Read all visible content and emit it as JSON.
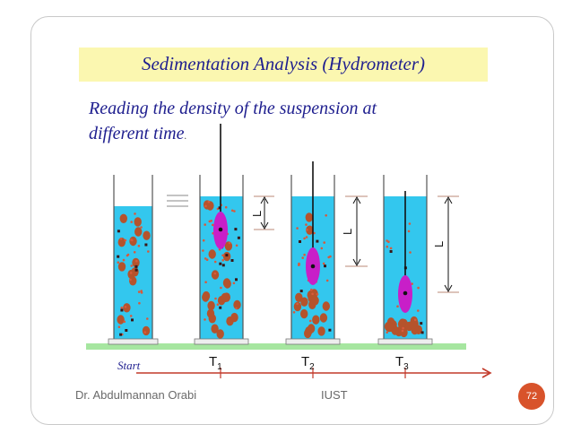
{
  "title": "Sedimentation Analysis (Hydrometer)",
  "subtitle": {
    "line1": "Reading the density of  the suspension at",
    "line2": "different time",
    "period": "."
  },
  "timeline": {
    "start_label": "Start",
    "t1": {
      "base": "T",
      "sub": "1"
    },
    "t2": {
      "base": "T",
      "sub": "2"
    },
    "t3": {
      "base": "T",
      "sub": "3"
    }
  },
  "dimension_label": "L",
  "footer": {
    "author": "Dr. Abdulmannan Orabi",
    "institution": "IUST",
    "page": "72"
  },
  "colors": {
    "water": "#33c7ee",
    "particle_large": "#b5532c",
    "particle_small": "#d85a3b",
    "particle_dark": "#3a1717",
    "hydrometer": "#c81fc8",
    "base_strip": "#a6e6a0",
    "timeline": "#c23a2a",
    "title_bg": "#fbf7b0",
    "text_blue": "#1f1f8f"
  }
}
